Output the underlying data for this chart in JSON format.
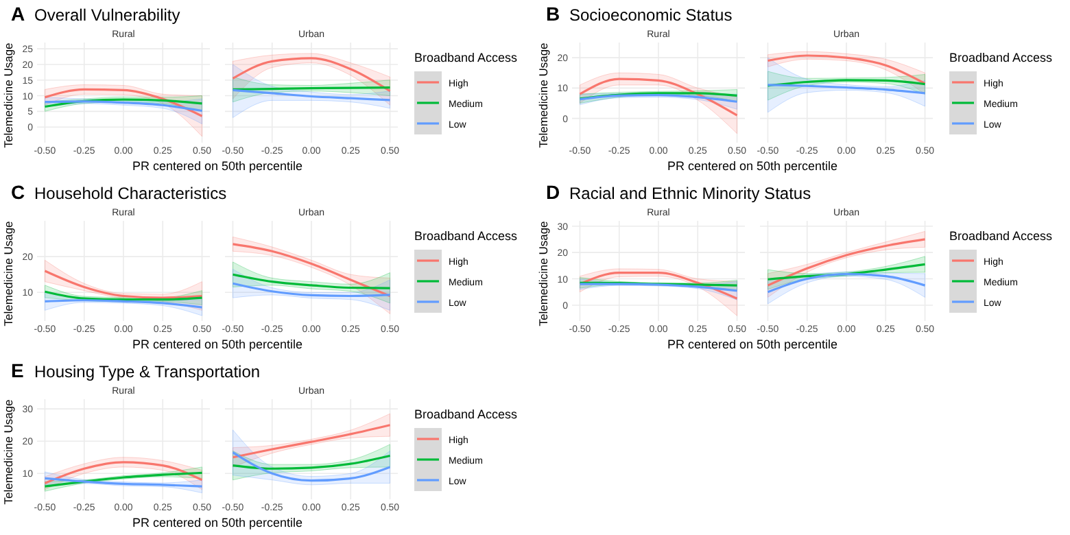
{
  "chart_data": [
    {
      "type": "line",
      "title": "Overall Vulnerability",
      "subtitle": "Rural",
      "annotations": [
        "A"
      ],
      "xlabel": "PR centered on 50th percentile",
      "ylabel": "Telemedicine Usage",
      "x": [
        -0.5,
        -0.25,
        0,
        0.25,
        0.5
      ],
      "xlim": [
        -0.55,
        0.55
      ],
      "xticks": [
        {
          "value": -0.5,
          "label": "-0.50"
        },
        {
          "value": -0.25,
          "label": "-0.25"
        },
        {
          "value": 0,
          "label": "0.00"
        },
        {
          "value": 0.25,
          "label": "0.25"
        },
        {
          "value": 0.5,
          "label": "0.50"
        }
      ],
      "ylim": [
        -5,
        27
      ],
      "yticks": [
        0,
        5,
        10,
        15,
        20,
        25
      ],
      "grid": true,
      "legend": false,
      "series": [
        {
          "color": "#f8766d",
          "values": [
            9.5,
            12,
            11.8,
            9,
            3.5
          ],
          "lower": [
            7,
            10.5,
            10.3,
            7.5,
            -3
          ],
          "upper": [
            12,
            13.5,
            13.3,
            10.5,
            10
          ]
        },
        {
          "color": "#00ba38",
          "values": [
            6.5,
            8.3,
            8.8,
            8.5,
            7.5
          ],
          "lower": [
            5,
            7.5,
            8,
            7.5,
            5
          ],
          "upper": [
            8,
            9,
            9.6,
            9.5,
            10
          ]
        },
        {
          "color": "#619cff",
          "values": [
            8,
            8.2,
            7.8,
            7,
            5.2
          ],
          "lower": [
            6.5,
            7.5,
            7,
            6,
            1
          ],
          "upper": [
            9.5,
            9,
            8.6,
            8,
            9
          ]
        }
      ]
    },
    {
      "type": "line",
      "subtitle": "Urban",
      "legend_title": "Broadband Access",
      "x": [
        -0.5,
        -0.25,
        0,
        0.25,
        0.5
      ],
      "xlim": [
        -0.55,
        0.55
      ],
      "xticks": [
        {
          "value": -0.5,
          "label": "-0.50"
        },
        {
          "value": -0.25,
          "label": "-0.25"
        },
        {
          "value": 0,
          "label": "0.00"
        },
        {
          "value": 0.25,
          "label": "0.25"
        },
        {
          "value": 0.5,
          "label": "0.50"
        }
      ],
      "ylim": [
        -5,
        27
      ],
      "yticks": [
        0,
        5,
        10,
        15,
        20,
        25
      ],
      "tick_labels": "x",
      "grid": true,
      "legend": "right",
      "series": [
        {
          "name": "High",
          "color": "#f8766d",
          "values": [
            15.5,
            21,
            22,
            18.5,
            11.5
          ],
          "lower": [
            9,
            19,
            20.5,
            16.5,
            7
          ],
          "upper": [
            21,
            23,
            23.5,
            20.5,
            16
          ]
        },
        {
          "name": "Medium",
          "color": "#00ba38",
          "values": [
            12,
            12.2,
            12.4,
            12.5,
            12.6
          ],
          "lower": [
            8,
            11,
            11.5,
            11,
            10
          ],
          "upper": [
            16,
            13.5,
            13.3,
            14,
            15
          ]
        },
        {
          "name": "Low",
          "color": "#619cff",
          "values": [
            11.8,
            10.8,
            9.8,
            9.2,
            8.6
          ],
          "lower": [
            3,
            8.5,
            8.5,
            8,
            6
          ],
          "upper": [
            20,
            13,
            11.2,
            10.4,
            11.5
          ]
        }
      ]
    },
    {
      "type": "line",
      "title": "Socioeconomic Status",
      "subtitle": "Rural",
      "annotations": [
        "B"
      ],
      "xlabel": "PR centered on 50th percentile",
      "ylabel": "Telemedicine Usage",
      "x": [
        -0.5,
        -0.25,
        0,
        0.25,
        0.5
      ],
      "xlim": [
        -0.55,
        0.55
      ],
      "xticks": [
        {
          "value": -0.5,
          "label": "-0.50"
        },
        {
          "value": -0.25,
          "label": "-0.25"
        },
        {
          "value": 0,
          "label": "0.00"
        },
        {
          "value": 0.25,
          "label": "0.25"
        },
        {
          "value": 0.5,
          "label": "0.50"
        }
      ],
      "ylim": [
        -8,
        25
      ],
      "yticks": [
        0,
        10,
        20
      ],
      "grid": true,
      "legend": false,
      "series": [
        {
          "color": "#f8766d",
          "values": [
            8,
            13,
            12.5,
            8,
            1
          ],
          "lower": [
            5,
            11,
            11,
            6,
            -5
          ],
          "upper": [
            11,
            15,
            14.5,
            10,
            7
          ]
        },
        {
          "color": "#00ba38",
          "values": [
            6.5,
            7.8,
            8.3,
            8.3,
            7.5
          ],
          "lower": [
            5,
            7,
            7.7,
            7.5,
            5.5
          ],
          "upper": [
            8,
            8.6,
            8.9,
            9.1,
            9.5
          ]
        },
        {
          "color": "#619cff",
          "values": [
            6.3,
            7.5,
            7.7,
            7,
            5.5
          ],
          "lower": [
            4.5,
            6.8,
            7,
            6.2,
            3
          ],
          "upper": [
            8,
            8.2,
            8.4,
            7.8,
            8
          ]
        }
      ]
    },
    {
      "type": "line",
      "subtitle": "Urban",
      "legend_title": "Broadband Access",
      "x": [
        -0.5,
        -0.25,
        0,
        0.25,
        0.5
      ],
      "xlim": [
        -0.55,
        0.55
      ],
      "xticks": [
        {
          "value": -0.5,
          "label": "-0.50"
        },
        {
          "value": -0.25,
          "label": "-0.25"
        },
        {
          "value": 0,
          "label": "0.00"
        },
        {
          "value": 0.25,
          "label": "0.25"
        },
        {
          "value": 0.5,
          "label": "0.50"
        }
      ],
      "ylim": [
        -8,
        25
      ],
      "yticks": [
        0,
        10,
        20
      ],
      "tick_labels": "x",
      "grid": true,
      "legend": "right",
      "series": [
        {
          "name": "High",
          "color": "#f8766d",
          "values": [
            19,
            20.7,
            20,
            17.5,
            11.5
          ],
          "lower": [
            17,
            19.5,
            19,
            16,
            8
          ],
          "upper": [
            21,
            22,
            21.3,
            19.5,
            15
          ]
        },
        {
          "name": "Medium",
          "color": "#00ba38",
          "values": [
            10.8,
            12,
            12.6,
            12.5,
            11.3
          ],
          "lower": [
            6,
            10.8,
            12,
            11.5,
            8
          ],
          "upper": [
            15.5,
            13.2,
            13.3,
            13.5,
            14.5
          ]
        },
        {
          "name": "Low",
          "color": "#619cff",
          "values": [
            11,
            10.7,
            10.2,
            9.5,
            8.3
          ],
          "lower": [
            2,
            8.5,
            9.3,
            8.5,
            4
          ],
          "upper": [
            20,
            12.9,
            11.1,
            10.5,
            12.5
          ]
        }
      ]
    },
    {
      "type": "line",
      "title": "Household Characteristics",
      "subtitle": "Rural",
      "annotations": [
        "C"
      ],
      "xlabel": "PR centered on 50th percentile",
      "ylabel": "Telemedicine Usage",
      "x": [
        -0.5,
        -0.25,
        0,
        0.25,
        0.5
      ],
      "xlim": [
        -0.55,
        0.55
      ],
      "xticks": [
        {
          "value": -0.5,
          "label": "-0.50"
        },
        {
          "value": -0.25,
          "label": "-0.25"
        },
        {
          "value": 0,
          "label": "0.00"
        },
        {
          "value": 0.25,
          "label": "0.25"
        },
        {
          "value": 0.5,
          "label": "0.50"
        }
      ],
      "ylim": [
        2,
        30
      ],
      "yticks": [
        10,
        20
      ],
      "grid": true,
      "legend": false,
      "series": [
        {
          "color": "#f8766d",
          "values": [
            16,
            11.5,
            9,
            8.5,
            9
          ],
          "lower": [
            13,
            10.5,
            8.3,
            7.5,
            5
          ],
          "upper": [
            19,
            12.5,
            9.7,
            9.5,
            13
          ]
        },
        {
          "color": "#00ba38",
          "values": [
            10.2,
            8.3,
            8,
            8,
            8.5
          ],
          "lower": [
            8.5,
            7.7,
            7.4,
            7.4,
            6.5
          ],
          "upper": [
            12,
            8.9,
            8.6,
            8.6,
            10.5
          ]
        },
        {
          "color": "#619cff",
          "values": [
            7.5,
            7.8,
            7.5,
            7,
            5.8
          ],
          "lower": [
            5,
            7.2,
            7,
            6.3,
            3.5
          ],
          "upper": [
            10,
            8.4,
            8,
            7.7,
            8
          ]
        }
      ]
    },
    {
      "type": "line",
      "subtitle": "Urban",
      "legend_title": "Broadband Access",
      "x": [
        -0.5,
        -0.25,
        0,
        0.25,
        0.5
      ],
      "xlim": [
        -0.55,
        0.55
      ],
      "xticks": [
        {
          "value": -0.5,
          "label": "-0.50"
        },
        {
          "value": -0.25,
          "label": "-0.25"
        },
        {
          "value": 0,
          "label": "0.00"
        },
        {
          "value": 0.25,
          "label": "0.25"
        },
        {
          "value": 0.5,
          "label": "0.50"
        }
      ],
      "ylim": [
        2,
        30
      ],
      "yticks": [
        10,
        20
      ],
      "tick_labels": "x",
      "grid": true,
      "legend": "right",
      "series": [
        {
          "name": "High",
          "color": "#f8766d",
          "values": [
            23.5,
            21.5,
            18,
            13.5,
            9
          ],
          "lower": [
            21.5,
            20.3,
            17,
            12,
            4
          ],
          "upper": [
            25.5,
            22.7,
            19,
            15,
            14
          ]
        },
        {
          "name": "Medium",
          "color": "#00ba38",
          "values": [
            15,
            13,
            12,
            11.3,
            11.2
          ],
          "lower": [
            11.5,
            12,
            11,
            10.3,
            7
          ],
          "upper": [
            18.5,
            14,
            13,
            12.3,
            15.5
          ]
        },
        {
          "name": "Low",
          "color": "#619cff",
          "values": [
            12.5,
            10.3,
            9.2,
            9,
            9.3
          ],
          "lower": [
            8.5,
            9.3,
            8.4,
            8,
            5
          ],
          "upper": [
            16.5,
            11.3,
            10,
            10,
            13.5
          ]
        }
      ]
    },
    {
      "type": "line",
      "title": "Racial and Ethnic Minority Status",
      "subtitle": "Rural",
      "annotations": [
        "D"
      ],
      "xlabel": "PR centered on 50th percentile",
      "ylabel": "Telemedicine Usage",
      "x": [
        -0.5,
        -0.25,
        0,
        0.25,
        0.5
      ],
      "xlim": [
        -0.55,
        0.55
      ],
      "xticks": [
        {
          "value": -0.5,
          "label": "-0.50"
        },
        {
          "value": -0.25,
          "label": "-0.25"
        },
        {
          "value": 0,
          "label": "0.00"
        },
        {
          "value": 0.25,
          "label": "0.25"
        },
        {
          "value": 0.5,
          "label": "0.50"
        }
      ],
      "ylim": [
        -6,
        32
      ],
      "yticks": [
        0,
        10,
        20,
        30
      ],
      "grid": true,
      "legend": false,
      "series": [
        {
          "color": "#f8766d",
          "values": [
            8,
            12.3,
            12.3,
            8.5,
            2.5
          ],
          "lower": [
            5,
            10.8,
            11,
            7,
            -4
          ],
          "upper": [
            11,
            13.8,
            13.6,
            10,
            9
          ]
        },
        {
          "color": "#00ba38",
          "values": [
            8.5,
            8.4,
            8,
            7.8,
            7.5
          ],
          "lower": [
            6.5,
            7.8,
            7.5,
            7.2,
            5.5
          ],
          "upper": [
            10.5,
            9,
            8.5,
            8.4,
            9.5
          ]
        },
        {
          "color": "#619cff",
          "values": [
            8,
            8,
            7.8,
            7,
            5.5
          ],
          "lower": [
            6,
            7.5,
            7.3,
            6.3,
            2
          ],
          "upper": [
            10,
            8.5,
            8.3,
            7.7,
            9
          ]
        }
      ]
    },
    {
      "type": "line",
      "subtitle": "Urban",
      "legend_title": "Broadband Access",
      "x": [
        -0.5,
        -0.25,
        0,
        0.25,
        0.5
      ],
      "xlim": [
        -0.55,
        0.55
      ],
      "xticks": [
        {
          "value": -0.5,
          "label": "-0.50"
        },
        {
          "value": -0.25,
          "label": "-0.25"
        },
        {
          "value": 0,
          "label": "0.00"
        },
        {
          "value": 0.25,
          "label": "0.25"
        },
        {
          "value": 0.5,
          "label": "0.50"
        }
      ],
      "ylim": [
        -6,
        32
      ],
      "yticks": [
        0,
        10,
        20,
        30
      ],
      "tick_labels": "x",
      "grid": true,
      "legend": "right",
      "series": [
        {
          "name": "High",
          "color": "#f8766d",
          "values": [
            7.5,
            14,
            19,
            22.5,
            25
          ],
          "lower": [
            3,
            12.5,
            18,
            21,
            22
          ],
          "upper": [
            12,
            15.5,
            20,
            24,
            28
          ]
        },
        {
          "name": "Medium",
          "color": "#00ba38",
          "values": [
            9.8,
            11,
            11.8,
            13.5,
            15.5
          ],
          "lower": [
            6,
            10,
            11,
            12.3,
            12.5
          ],
          "upper": [
            13.5,
            12,
            12.6,
            14.7,
            18.5
          ]
        },
        {
          "name": "Low",
          "color": "#619cff",
          "values": [
            5,
            10,
            11.8,
            11,
            7.5
          ],
          "lower": [
            0.5,
            8.5,
            11,
            9.8,
            3
          ],
          "upper": [
            9.5,
            11.5,
            12.6,
            12.2,
            12
          ]
        }
      ]
    },
    {
      "type": "line",
      "title": "Housing Type & Transportation",
      "subtitle": "Rural",
      "annotations": [
        "E"
      ],
      "xlabel": "PR centered on 50th percentile",
      "ylabel": "Telemedicine Usage",
      "x": [
        -0.5,
        -0.25,
        0,
        0.25,
        0.5
      ],
      "xlim": [
        -0.55,
        0.55
      ],
      "xticks": [
        {
          "value": -0.5,
          "label": "-0.50"
        },
        {
          "value": -0.25,
          "label": "-0.25"
        },
        {
          "value": 0,
          "label": "0.00"
        },
        {
          "value": 0.25,
          "label": "0.25"
        },
        {
          "value": 0.5,
          "label": "0.50"
        }
      ],
      "ylim": [
        2,
        33
      ],
      "yticks": [
        10,
        20,
        30
      ],
      "grid": true,
      "legend": false,
      "series": [
        {
          "color": "#f8766d",
          "values": [
            7,
            11.5,
            13.5,
            12.5,
            8
          ],
          "lower": [
            5,
            10,
            12,
            11,
            5
          ],
          "upper": [
            9,
            13,
            15,
            14,
            11
          ]
        },
        {
          "color": "#00ba38",
          "values": [
            6,
            7.5,
            8.8,
            9.6,
            10.2
          ],
          "lower": [
            4.5,
            7,
            8.3,
            9,
            8.5
          ],
          "upper": [
            7.5,
            8,
            9.3,
            10.2,
            12
          ]
        },
        {
          "color": "#619cff",
          "values": [
            8.5,
            7.5,
            6.8,
            6.5,
            6
          ],
          "lower": [
            6.5,
            6.9,
            6.2,
            5.9,
            4
          ],
          "upper": [
            10.5,
            8.1,
            7.4,
            7.1,
            8
          ]
        }
      ]
    },
    {
      "type": "line",
      "subtitle": "Urban",
      "legend_title": "Broadband Access",
      "x": [
        -0.5,
        -0.25,
        0,
        0.25,
        0.5
      ],
      "xlim": [
        -0.55,
        0.55
      ],
      "xticks": [
        {
          "value": -0.5,
          "label": "-0.50"
        },
        {
          "value": -0.25,
          "label": "-0.25"
        },
        {
          "value": 0,
          "label": "0.00"
        },
        {
          "value": 0.25,
          "label": "0.25"
        },
        {
          "value": 0.5,
          "label": "0.50"
        }
      ],
      "ylim": [
        2,
        33
      ],
      "yticks": [
        10,
        20,
        30
      ],
      "tick_labels": "x",
      "grid": true,
      "legend": "right",
      "series": [
        {
          "name": "High",
          "color": "#f8766d",
          "values": [
            15,
            17.5,
            19.8,
            22.2,
            25
          ],
          "lower": [
            12,
            16.3,
            19,
            21,
            21.5
          ],
          "upper": [
            18,
            18.7,
            20.6,
            23.4,
            28.5
          ]
        },
        {
          "name": "Medium",
          "color": "#00ba38",
          "values": [
            12.5,
            11.5,
            11.8,
            13,
            15.5
          ],
          "lower": [
            8,
            10.2,
            10.8,
            11.8,
            12
          ],
          "upper": [
            17,
            12.8,
            12.8,
            14.2,
            19
          ]
        },
        {
          "name": "Low",
          "color": "#619cff",
          "values": [
            16.5,
            10,
            7.8,
            8.5,
            12
          ],
          "lower": [
            9.5,
            8,
            6.5,
            7,
            7
          ],
          "upper": [
            23.5,
            12,
            9.1,
            10,
            17
          ]
        }
      ]
    }
  ]
}
